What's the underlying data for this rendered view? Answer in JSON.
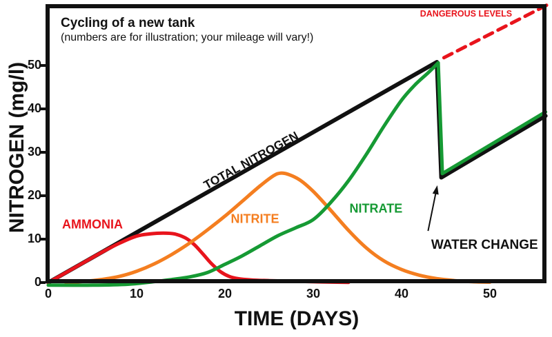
{
  "title": {
    "line1": "Cycling of a new tank",
    "line2": "(numbers are for illustration; your mileage will vary!)"
  },
  "colors": {
    "red": "#e8141c",
    "orange": "#f47e20",
    "green": "#169a34",
    "black": "#111111"
  },
  "chart_data": {
    "type": "line",
    "xlabel": "TIME (DAYS)",
    "ylabel": "NITROGEN (mg/l)",
    "xlim": [
      0,
      56.3
    ],
    "ylim": [
      0,
      63.8
    ],
    "x_ticks": [
      0,
      10,
      20,
      30,
      40,
      50
    ],
    "y_ticks": [
      0,
      10,
      20,
      30,
      40,
      50
    ],
    "grid": false,
    "legend": "labels drawn next to curves",
    "series": [
      {
        "name": "total-nitrogen",
        "label": "TOTAL NITROGEN",
        "color": "#111111",
        "width": 6,
        "dash": null,
        "smooth": false,
        "points": [
          [
            0,
            0
          ],
          [
            44,
            50.8
          ],
          [
            44.5,
            24.2
          ],
          [
            56.3,
            38.4
          ]
        ]
      },
      {
        "name": "ammonia",
        "label": "AMMONIA",
        "color": "#e8141c",
        "width": 5,
        "dash": null,
        "smooth": true,
        "points": [
          [
            0,
            0
          ],
          [
            2,
            2.3
          ],
          [
            4,
            4.6
          ],
          [
            6,
            6.9
          ],
          [
            8,
            9.0
          ],
          [
            10,
            10.7
          ],
          [
            11.5,
            11.2
          ],
          [
            13,
            11.4
          ],
          [
            14.3,
            11.2
          ],
          [
            15.5,
            10.3
          ],
          [
            16.5,
            8.8
          ],
          [
            17.5,
            6.6
          ],
          [
            18.5,
            4.3
          ],
          [
            19.5,
            2.5
          ],
          [
            20.5,
            1.4
          ],
          [
            21.5,
            0.9
          ],
          [
            23,
            0.6
          ],
          [
            25,
            0.45
          ],
          [
            28,
            0.3
          ],
          [
            31,
            0.15
          ],
          [
            34,
            0.05
          ]
        ]
      },
      {
        "name": "nitrite",
        "label": "NITRITE",
        "color": "#f47e20",
        "width": 5,
        "dash": null,
        "smooth": true,
        "points": [
          [
            2,
            0
          ],
          [
            4,
            0.25
          ],
          [
            6,
            0.7
          ],
          [
            8,
            1.4
          ],
          [
            10,
            2.6
          ],
          [
            12,
            4.3
          ],
          [
            14,
            6.5
          ],
          [
            16,
            9.1
          ],
          [
            18,
            12.1
          ],
          [
            20,
            15.3
          ],
          [
            22,
            18.8
          ],
          [
            24,
            22.3
          ],
          [
            25.5,
            24.6
          ],
          [
            26.3,
            25.2
          ],
          [
            27.2,
            24.9
          ],
          [
            28.5,
            23.6
          ],
          [
            30,
            21.0
          ],
          [
            32,
            16.6
          ],
          [
            34,
            12.0
          ],
          [
            36,
            8.0
          ],
          [
            38,
            5.0
          ],
          [
            40,
            3.0
          ],
          [
            42,
            1.7
          ],
          [
            44,
            0.9
          ],
          [
            46,
            0.45
          ],
          [
            48,
            0.2
          ],
          [
            50,
            0.1
          ]
        ]
      },
      {
        "name": "nitrate",
        "label": "NITRATE",
        "color": "#169a34",
        "width": 5,
        "dash": null,
        "smooth": true,
        "points": [
          [
            0,
            -0.6
          ],
          [
            5,
            -0.6
          ],
          [
            9,
            -0.4
          ],
          [
            12,
            0.2
          ],
          [
            14,
            0.7
          ],
          [
            16,
            1.3
          ],
          [
            18,
            2.3
          ],
          [
            20,
            4.2
          ],
          [
            22,
            6.2
          ],
          [
            24,
            8.5
          ],
          [
            26,
            10.8
          ],
          [
            28,
            12.6
          ],
          [
            30,
            14.5
          ],
          [
            32,
            18.5
          ],
          [
            34,
            23.5
          ],
          [
            36,
            29.5
          ],
          [
            38,
            36.0
          ],
          [
            40,
            42.0
          ],
          [
            41.5,
            45.5
          ],
          [
            43,
            48.3
          ],
          [
            44.15,
            50.6
          ]
        ]
      },
      {
        "name": "nitrate-after-water-change",
        "label": "NITRATE",
        "color": "#169a34",
        "width": 5,
        "dash": null,
        "smooth": false,
        "points": [
          [
            44.15,
            50.6
          ],
          [
            44.62,
            25.1
          ],
          [
            56.3,
            39.3
          ]
        ]
      },
      {
        "name": "dangerous-levels",
        "label": "DANGEROUS LEVELS",
        "color": "#e8141c",
        "width": 5,
        "dash": "13 9",
        "smooth": false,
        "points": [
          [
            44.8,
            51.8
          ],
          [
            56.45,
            63.9
          ]
        ]
      }
    ],
    "annotations": [
      {
        "name": "ammonia-label",
        "text": "AMMONIA",
        "color": "#e8141c",
        "day": 5.0,
        "value": 13.3,
        "size": 18,
        "rotate": 0
      },
      {
        "name": "nitrite-label",
        "text": "NITRITE",
        "color": "#f47e20",
        "day": 23.4,
        "value": 14.6,
        "size": 18,
        "rotate": 0
      },
      {
        "name": "nitrate-label",
        "text": "NITRATE",
        "color": "#169a34",
        "day": 37.1,
        "value": 17.0,
        "size": 18,
        "rotate": 0
      },
      {
        "name": "total-nitrogen-label",
        "text": "TOTAL NITROGEN",
        "color": "#111111",
        "day": 23.0,
        "value": 28.1,
        "size": 17.5,
        "rotate": -29
      },
      {
        "name": "water-change-label",
        "text": "WATER CHANGE",
        "color": "#111111",
        "day": 49.4,
        "value": 8.6,
        "size": 19,
        "rotate": 0
      },
      {
        "name": "dangerous-levels-label",
        "text": "DANGEROUS LEVELS",
        "color": "#e8141c",
        "day": 47.3,
        "value": 61.9,
        "size": 12.5,
        "rotate": 0
      }
    ],
    "arrow": {
      "from_day": 43.0,
      "from_value": 11.9,
      "to_day": 44.05,
      "to_value": 22.4
    }
  }
}
